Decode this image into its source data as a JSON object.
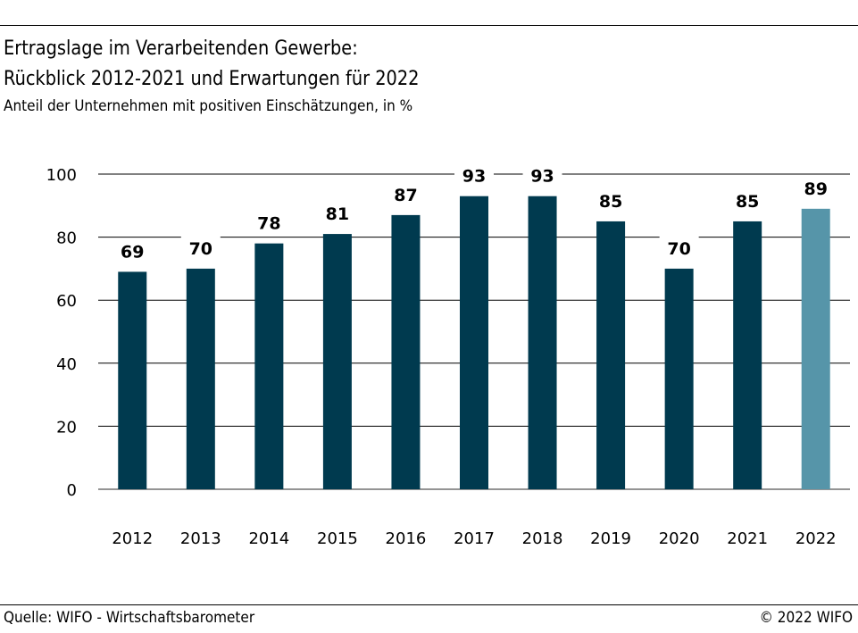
{
  "header": {
    "title_line1": "Ertragslage im Verarbeitenden Gewerbe:",
    "title_line2": "Rückblick 2012-2021 und Erwartungen für 2022",
    "subtitle": "Anteil der Unternehmen mit positiven Einschätzungen, in %"
  },
  "footer": {
    "source": "Quelle: WIFO - Wirtschaftsbarometer",
    "copyright": "© 2022 WIFO"
  },
  "colors": {
    "bar": "#003a4f",
    "bar_expectation": "#5695a9"
  },
  "chart_data": {
    "type": "bar",
    "title": "Ertragslage im Verarbeitenden Gewerbe: Rückblick 2012-2021 und Erwartungen für 2022",
    "subtitle": "Anteil der Unternehmen mit positiven Einschätzungen, in %",
    "categories": [
      "2012",
      "2013",
      "2014",
      "2015",
      "2016",
      "2017",
      "2018",
      "2019",
      "2020",
      "2021",
      "2022"
    ],
    "values": [
      69,
      70,
      78,
      81,
      87,
      93,
      93,
      85,
      70,
      85,
      89
    ],
    "highlight_category": "2022",
    "ylim": [
      0,
      100
    ],
    "yticks": [
      0,
      20,
      40,
      60,
      80,
      100
    ],
    "grid": true,
    "data_labels": true,
    "legend": "none"
  }
}
